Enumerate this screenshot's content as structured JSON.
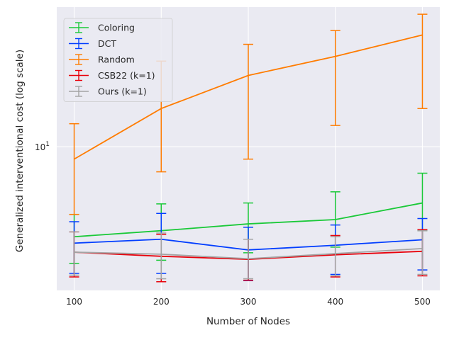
{
  "chart_data": {
    "type": "line",
    "xlabel": "Number of Nodes",
    "ylabel": "Generalized interventional cost (log scale)",
    "x": [
      100,
      200,
      300,
      400,
      500
    ],
    "x_ticks": [
      "100",
      "200",
      "300",
      "400",
      "500"
    ],
    "xlim": [
      80,
      520
    ],
    "y_scale": "log",
    "ylim": [
      2.6,
      37
    ],
    "y_ticks": [
      {
        "value": 10,
        "base": "10",
        "exp": "1"
      }
    ],
    "grid": true,
    "background": "#eaeaf2",
    "legend": "top-left",
    "series": [
      {
        "name": "Coloring",
        "color": "#1ac938",
        "values": [
          4.3,
          4.55,
          4.85,
          5.05,
          5.9
        ],
        "err_low": [
          3.35,
          3.45,
          3.7,
          3.9,
          4.55
        ],
        "err_high": [
          5.3,
          5.85,
          5.9,
          6.55,
          7.8
        ]
      },
      {
        "name": "DCT",
        "color": "#023eff",
        "values": [
          4.05,
          4.2,
          3.8,
          3.97,
          4.18
        ],
        "err_low": [
          3.05,
          3.05,
          2.85,
          3.02,
          3.15
        ],
        "err_high": [
          4.95,
          5.35,
          4.7,
          4.8,
          5.1
        ]
      },
      {
        "name": "Random",
        "color": "#ff7c00",
        "values": [
          8.9,
          14.3,
          19.5,
          23.3,
          28.5
        ],
        "err_low": [
          5.3,
          7.9,
          8.9,
          12.2,
          14.3
        ],
        "err_high": [
          12.4,
          22.3,
          26.1,
          29.7,
          34.6
        ]
      },
      {
        "name": "CSB22 (k=1)",
        "color": "#e8000b",
        "values": [
          3.72,
          3.58,
          3.48,
          3.63,
          3.75
        ],
        "err_low": [
          2.95,
          2.82,
          2.86,
          2.95,
          2.98
        ],
        "err_high": [
          4.5,
          4.4,
          4.2,
          4.35,
          4.6
        ]
      },
      {
        "name": "Ours (k=1)",
        "color": "#a3a3a3",
        "values": [
          3.72,
          3.65,
          3.5,
          3.67,
          3.85
        ],
        "err_low": [
          3.0,
          2.9,
          2.9,
          2.98,
          3.02
        ],
        "err_high": [
          4.5,
          4.45,
          4.2,
          4.3,
          4.55
        ]
      }
    ]
  }
}
